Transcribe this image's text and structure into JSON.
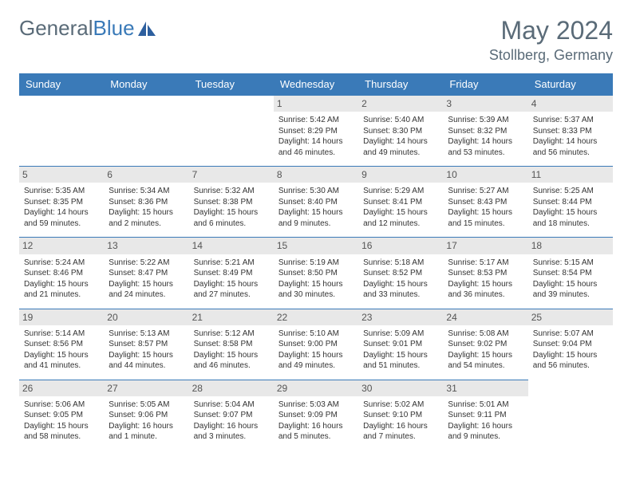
{
  "logo": {
    "general": "General",
    "blue": "Blue"
  },
  "title": "May 2024",
  "location": "Stollberg, Germany",
  "colors": {
    "header_bg": "#3a7ab8",
    "header_text": "#ffffff",
    "daynum_bg": "#e8e8e8",
    "border": "#3a7ab8",
    "text": "#333333",
    "muted": "#5a6b78"
  },
  "dayNames": [
    "Sunday",
    "Monday",
    "Tuesday",
    "Wednesday",
    "Thursday",
    "Friday",
    "Saturday"
  ],
  "weeks": [
    [
      null,
      null,
      null,
      {
        "n": "1",
        "sr": "Sunrise: 5:42 AM",
        "ss": "Sunset: 8:29 PM",
        "dl": "Daylight: 14 hours and 46 minutes."
      },
      {
        "n": "2",
        "sr": "Sunrise: 5:40 AM",
        "ss": "Sunset: 8:30 PM",
        "dl": "Daylight: 14 hours and 49 minutes."
      },
      {
        "n": "3",
        "sr": "Sunrise: 5:39 AM",
        "ss": "Sunset: 8:32 PM",
        "dl": "Daylight: 14 hours and 53 minutes."
      },
      {
        "n": "4",
        "sr": "Sunrise: 5:37 AM",
        "ss": "Sunset: 8:33 PM",
        "dl": "Daylight: 14 hours and 56 minutes."
      }
    ],
    [
      {
        "n": "5",
        "sr": "Sunrise: 5:35 AM",
        "ss": "Sunset: 8:35 PM",
        "dl": "Daylight: 14 hours and 59 minutes."
      },
      {
        "n": "6",
        "sr": "Sunrise: 5:34 AM",
        "ss": "Sunset: 8:36 PM",
        "dl": "Daylight: 15 hours and 2 minutes."
      },
      {
        "n": "7",
        "sr": "Sunrise: 5:32 AM",
        "ss": "Sunset: 8:38 PM",
        "dl": "Daylight: 15 hours and 6 minutes."
      },
      {
        "n": "8",
        "sr": "Sunrise: 5:30 AM",
        "ss": "Sunset: 8:40 PM",
        "dl": "Daylight: 15 hours and 9 minutes."
      },
      {
        "n": "9",
        "sr": "Sunrise: 5:29 AM",
        "ss": "Sunset: 8:41 PM",
        "dl": "Daylight: 15 hours and 12 minutes."
      },
      {
        "n": "10",
        "sr": "Sunrise: 5:27 AM",
        "ss": "Sunset: 8:43 PM",
        "dl": "Daylight: 15 hours and 15 minutes."
      },
      {
        "n": "11",
        "sr": "Sunrise: 5:25 AM",
        "ss": "Sunset: 8:44 PM",
        "dl": "Daylight: 15 hours and 18 minutes."
      }
    ],
    [
      {
        "n": "12",
        "sr": "Sunrise: 5:24 AM",
        "ss": "Sunset: 8:46 PM",
        "dl": "Daylight: 15 hours and 21 minutes."
      },
      {
        "n": "13",
        "sr": "Sunrise: 5:22 AM",
        "ss": "Sunset: 8:47 PM",
        "dl": "Daylight: 15 hours and 24 minutes."
      },
      {
        "n": "14",
        "sr": "Sunrise: 5:21 AM",
        "ss": "Sunset: 8:49 PM",
        "dl": "Daylight: 15 hours and 27 minutes."
      },
      {
        "n": "15",
        "sr": "Sunrise: 5:19 AM",
        "ss": "Sunset: 8:50 PM",
        "dl": "Daylight: 15 hours and 30 minutes."
      },
      {
        "n": "16",
        "sr": "Sunrise: 5:18 AM",
        "ss": "Sunset: 8:52 PM",
        "dl": "Daylight: 15 hours and 33 minutes."
      },
      {
        "n": "17",
        "sr": "Sunrise: 5:17 AM",
        "ss": "Sunset: 8:53 PM",
        "dl": "Daylight: 15 hours and 36 minutes."
      },
      {
        "n": "18",
        "sr": "Sunrise: 5:15 AM",
        "ss": "Sunset: 8:54 PM",
        "dl": "Daylight: 15 hours and 39 minutes."
      }
    ],
    [
      {
        "n": "19",
        "sr": "Sunrise: 5:14 AM",
        "ss": "Sunset: 8:56 PM",
        "dl": "Daylight: 15 hours and 41 minutes."
      },
      {
        "n": "20",
        "sr": "Sunrise: 5:13 AM",
        "ss": "Sunset: 8:57 PM",
        "dl": "Daylight: 15 hours and 44 minutes."
      },
      {
        "n": "21",
        "sr": "Sunrise: 5:12 AM",
        "ss": "Sunset: 8:58 PM",
        "dl": "Daylight: 15 hours and 46 minutes."
      },
      {
        "n": "22",
        "sr": "Sunrise: 5:10 AM",
        "ss": "Sunset: 9:00 PM",
        "dl": "Daylight: 15 hours and 49 minutes."
      },
      {
        "n": "23",
        "sr": "Sunrise: 5:09 AM",
        "ss": "Sunset: 9:01 PM",
        "dl": "Daylight: 15 hours and 51 minutes."
      },
      {
        "n": "24",
        "sr": "Sunrise: 5:08 AM",
        "ss": "Sunset: 9:02 PM",
        "dl": "Daylight: 15 hours and 54 minutes."
      },
      {
        "n": "25",
        "sr": "Sunrise: 5:07 AM",
        "ss": "Sunset: 9:04 PM",
        "dl": "Daylight: 15 hours and 56 minutes."
      }
    ],
    [
      {
        "n": "26",
        "sr": "Sunrise: 5:06 AM",
        "ss": "Sunset: 9:05 PM",
        "dl": "Daylight: 15 hours and 58 minutes."
      },
      {
        "n": "27",
        "sr": "Sunrise: 5:05 AM",
        "ss": "Sunset: 9:06 PM",
        "dl": "Daylight: 16 hours and 1 minute."
      },
      {
        "n": "28",
        "sr": "Sunrise: 5:04 AM",
        "ss": "Sunset: 9:07 PM",
        "dl": "Daylight: 16 hours and 3 minutes."
      },
      {
        "n": "29",
        "sr": "Sunrise: 5:03 AM",
        "ss": "Sunset: 9:09 PM",
        "dl": "Daylight: 16 hours and 5 minutes."
      },
      {
        "n": "30",
        "sr": "Sunrise: 5:02 AM",
        "ss": "Sunset: 9:10 PM",
        "dl": "Daylight: 16 hours and 7 minutes."
      },
      {
        "n": "31",
        "sr": "Sunrise: 5:01 AM",
        "ss": "Sunset: 9:11 PM",
        "dl": "Daylight: 16 hours and 9 minutes."
      },
      null
    ]
  ]
}
